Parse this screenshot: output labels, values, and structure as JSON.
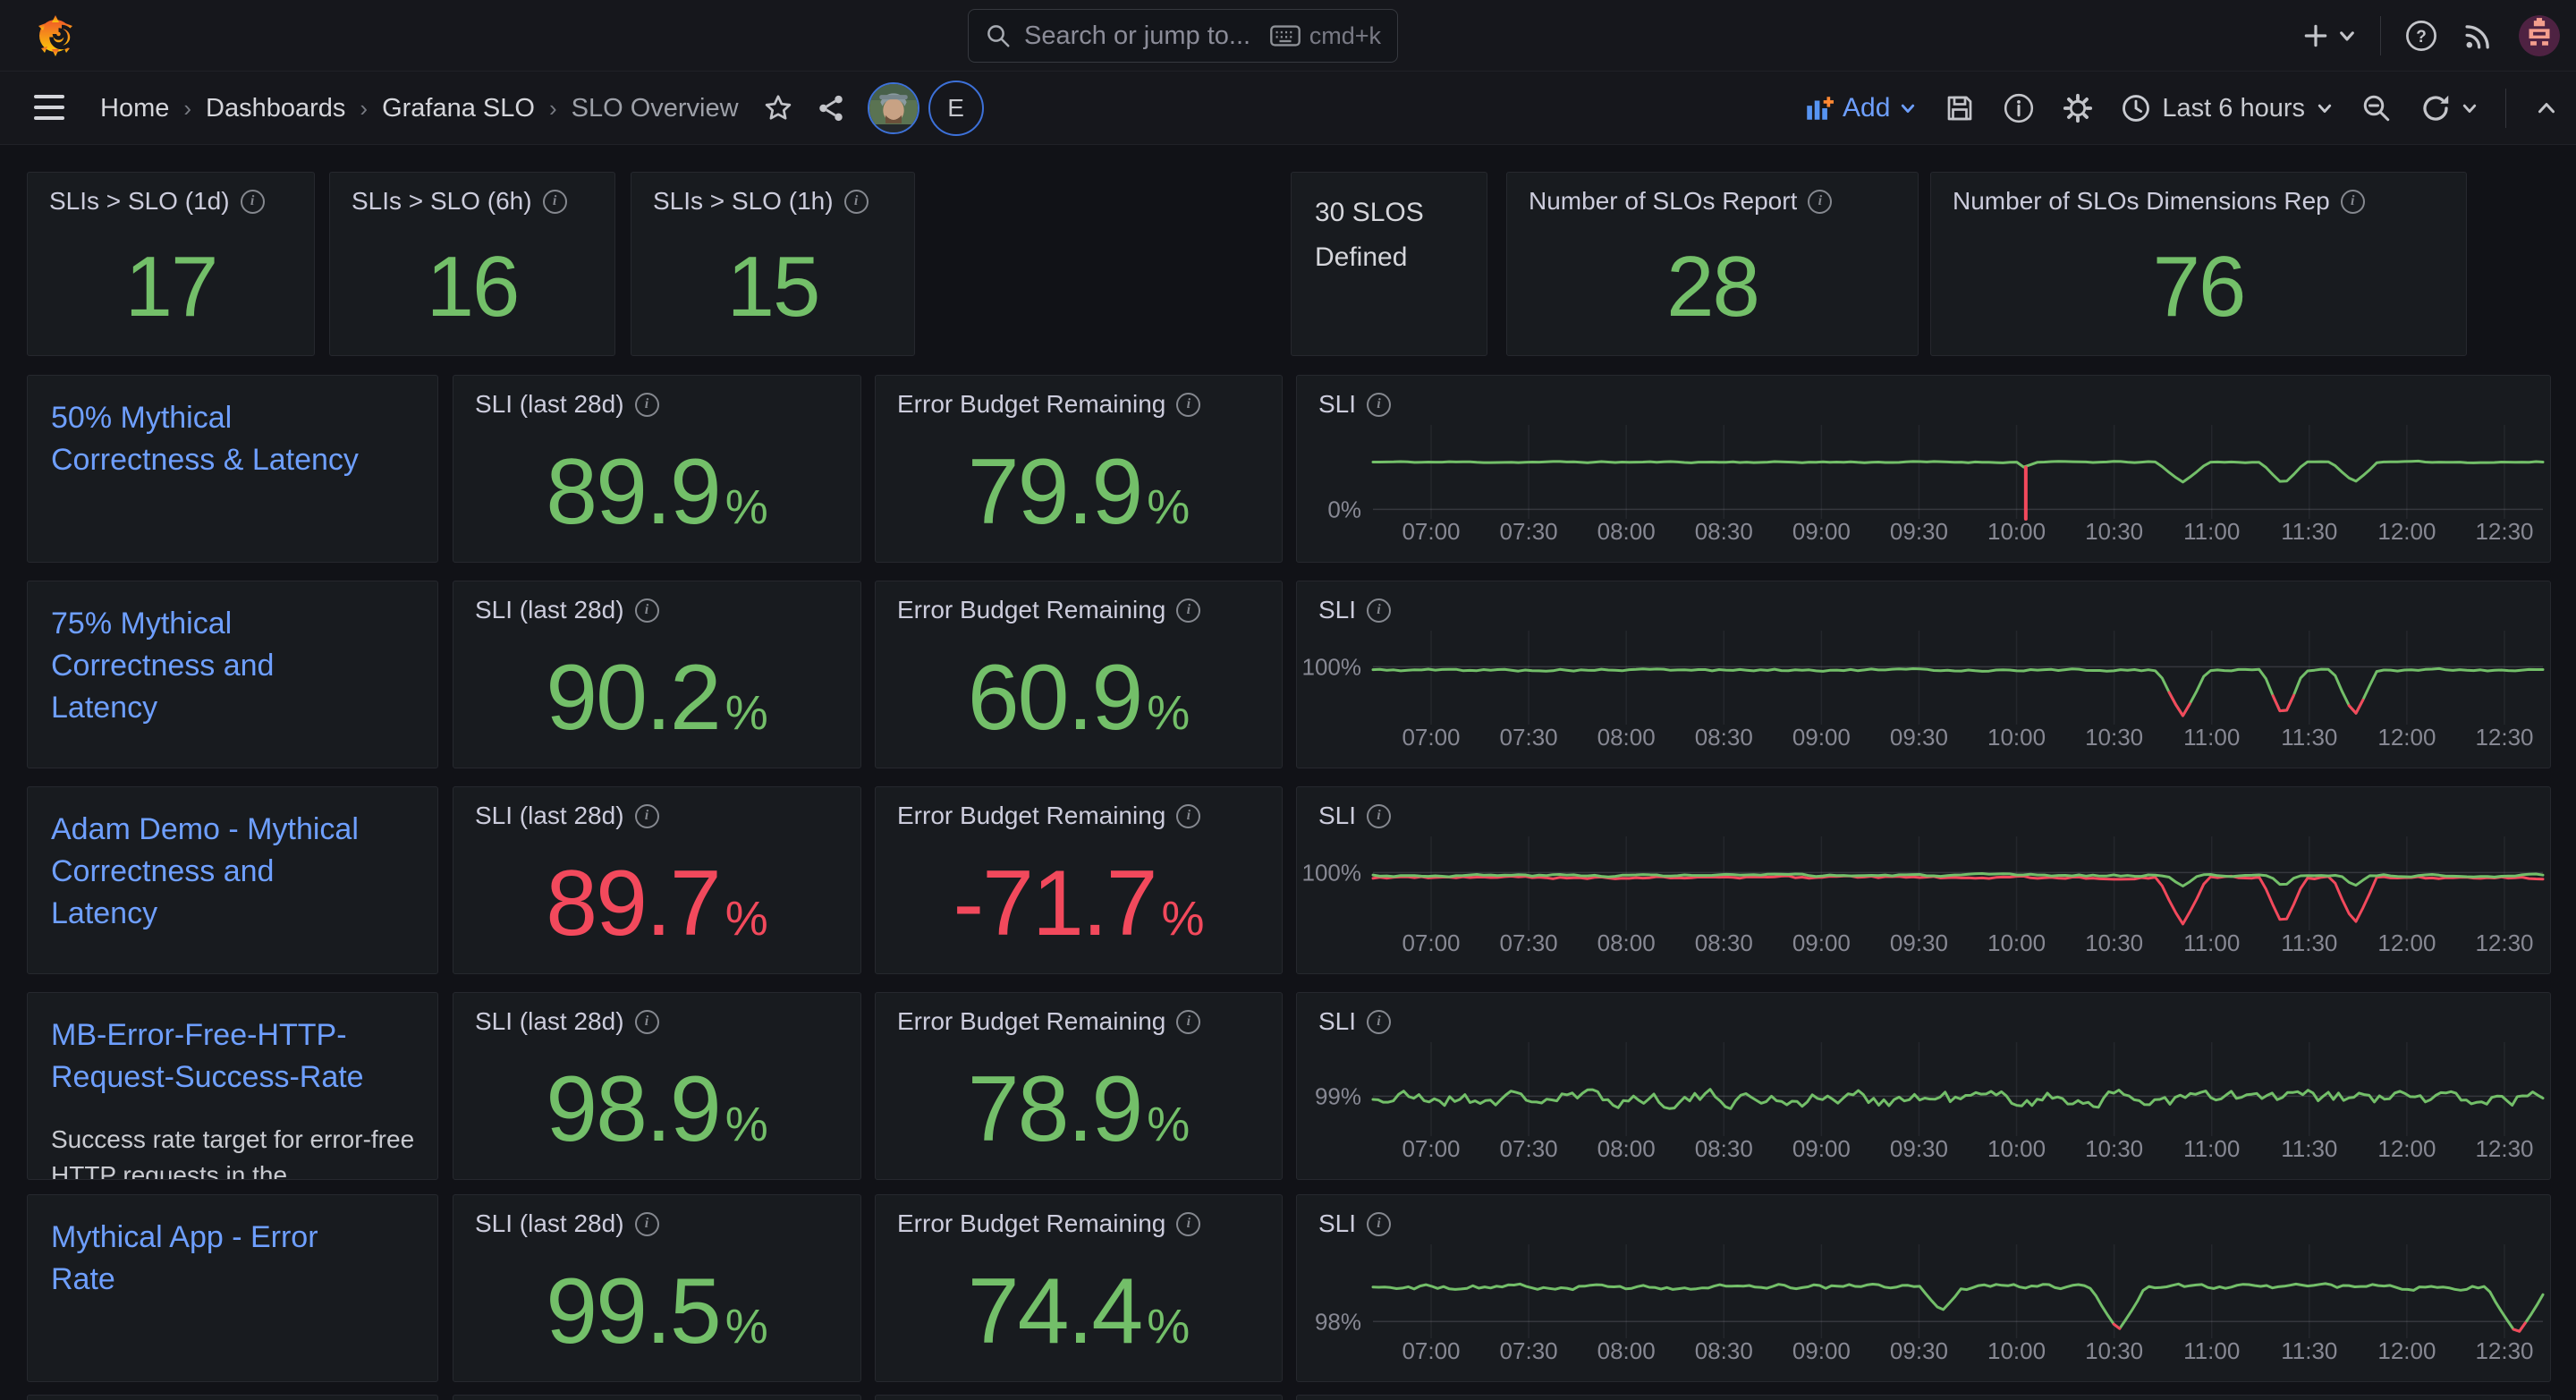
{
  "colors": {
    "green": "#73BF69",
    "red": "#F2495C",
    "blue": "#6E9FFF"
  },
  "icons": {
    "info_glyph": "i"
  },
  "topbar": {
    "search_placeholder": "Search or jump to...",
    "search_shortcut": "cmd+k"
  },
  "breadcrumb": {
    "home": "Home",
    "dashboards": "Dashboards",
    "folder": "Grafana SLO",
    "current": "SLO Overview",
    "separator": "›"
  },
  "toolbar": {
    "add_label": "Add",
    "time_range": "Last 6 hours"
  },
  "user_badge": "E",
  "labels": {
    "sli_title": "SLI (last 28d)",
    "budget_title": "Error Budget Remaining",
    "chart_title": "SLI",
    "percent": "%"
  },
  "summary": {
    "slo_1d": {
      "title": "SLIs > SLO (1d)",
      "value": "17"
    },
    "slo_6h": {
      "title": "SLIs > SLO (6h)",
      "value": "16"
    },
    "slo_1h": {
      "title": "SLIs > SLO (1h)",
      "value": "15"
    },
    "defined": {
      "line1": "30 SLOS",
      "line2": "Defined"
    },
    "report": {
      "title": "Number of SLOs Report",
      "value": "28"
    },
    "dimensions": {
      "title": "Number of SLOs Dimensions Rep",
      "value": "76"
    }
  },
  "slo_rows": [
    {
      "name": "50% Mythical Correctness & Latency",
      "sli": "89.9",
      "sli_color": "#73BF69",
      "budget": "79.9",
      "budget_color": "#73BF69"
    },
    {
      "name": "75% Mythical Correctness and Latency",
      "sli": "90.2",
      "sli_color": "#73BF69",
      "budget": "60.9",
      "budget_color": "#73BF69"
    },
    {
      "name": "Adam Demo - Mythical Correctness and Latency",
      "sli": "89.7",
      "sli_color": "#F2495C",
      "budget": "-71.7",
      "budget_color": "#F2495C"
    },
    {
      "name": "MB-Error-Free-HTTP-Request-Success-Rate",
      "description": "Success rate target for error-free HTTP requests in the",
      "sli": "98.9",
      "sli_color": "#73BF69",
      "budget": "78.9",
      "budget_color": "#73BF69"
    },
    {
      "name": "Mythical App - Error Rate",
      "sli": "99.5",
      "sli_color": "#73BF69",
      "budget": "74.4",
      "budget_color": "#73BF69"
    }
  ],
  "chart_data": [
    {
      "type": "line",
      "title": "SLI",
      "x_ticks": [
        "07:00",
        "07:30",
        "08:00",
        "08:30",
        "09:00",
        "09:30",
        "10:00",
        "10:30",
        "11:00",
        "11:30",
        "12:00",
        "12:30"
      ],
      "y_tick_label": "0%",
      "y_tick_value": 0,
      "ylim": [
        -14,
        125
      ],
      "series": [
        {
          "color": "#73BF69",
          "baseline": 70,
          "noise": 1.2,
          "seed": 11,
          "points": 170,
          "dips": [
            {
              "c": 0.558,
              "w": 0.012,
              "bottom": 60
            },
            {
              "c": 0.692,
              "w": 0.042,
              "bottom": 40
            },
            {
              "c": 0.778,
              "w": 0.036,
              "bottom": 37
            },
            {
              "c": 0.839,
              "w": 0.038,
              "bottom": 40
            }
          ]
        }
      ],
      "spikes": [
        {
          "x": 0.558,
          "from": 62,
          "to": -14,
          "color": "#F2495C"
        }
      ]
    },
    {
      "type": "line",
      "title": "SLI",
      "x_ticks": [
        "07:00",
        "07:30",
        "08:00",
        "08:30",
        "09:00",
        "09:30",
        "10:00",
        "10:30",
        "11:00",
        "11:30",
        "12:00",
        "12:30"
      ],
      "y_tick_label": "100%",
      "y_tick_value": 100,
      "ylim": [
        84,
        110
      ],
      "series": [
        {
          "color": "#73BF69",
          "baseline": 99.1,
          "noise": 0.4,
          "seed": 5,
          "points": 170,
          "threshold": 93,
          "dips": [
            {
              "c": 0.692,
              "w": 0.04,
              "bottom": 86.3
            },
            {
              "c": 0.778,
              "w": 0.034,
              "bottom": 85.9
            },
            {
              "c": 0.839,
              "w": 0.036,
              "bottom": 86.4
            }
          ]
        }
      ]
    },
    {
      "type": "line",
      "title": "SLI",
      "x_ticks": [
        "07:00",
        "07:30",
        "08:00",
        "08:30",
        "09:00",
        "09:30",
        "10:00",
        "10:30",
        "11:00",
        "11:30",
        "12:00",
        "12:30"
      ],
      "y_tick_label": "100%",
      "y_tick_value": 100,
      "ylim": [
        84,
        110
      ],
      "series": [
        {
          "color": "#F2495C",
          "baseline": 98.6,
          "noise": 0.45,
          "seed": 9,
          "points": 170,
          "dips": [
            {
              "c": 0.692,
              "w": 0.04,
              "bottom": 85.6
            },
            {
              "c": 0.778,
              "w": 0.036,
              "bottom": 85.2
            },
            {
              "c": 0.839,
              "w": 0.036,
              "bottom": 85.7
            }
          ]
        },
        {
          "color": "#73BF69",
          "baseline": 99.2,
          "noise": 0.4,
          "seed": 3,
          "points": 170,
          "dips": [
            {
              "c": 0.692,
              "w": 0.026,
              "bottom": 96.2
            },
            {
              "c": 0.778,
              "w": 0.022,
              "bottom": 96.0
            },
            {
              "c": 0.839,
              "w": 0.023,
              "bottom": 96.2
            }
          ]
        }
      ]
    },
    {
      "type": "line",
      "title": "SLI",
      "x_ticks": [
        "07:00",
        "07:30",
        "08:00",
        "08:30",
        "09:00",
        "09:30",
        "10:00",
        "10:30",
        "11:00",
        "11:30",
        "12:00",
        "12:30"
      ],
      "y_tick_label": "99%",
      "y_tick_value": 99,
      "ylim": [
        98.15,
        100.15
      ],
      "series": [
        {
          "color": "#73BF69",
          "baseline": 98.95,
          "noise": 0.21,
          "seed": 21,
          "points": 230,
          "dips": []
        }
      ]
    },
    {
      "type": "line",
      "title": "SLI",
      "x_ticks": [
        "07:00",
        "07:30",
        "08:00",
        "08:30",
        "09:00",
        "09:30",
        "10:00",
        "10:30",
        "11:00",
        "11:30",
        "12:00",
        "12:30"
      ],
      "y_tick_label": "98%",
      "y_tick_value": 98,
      "ylim": [
        97.87,
        98.6
      ],
      "series": [
        {
          "color": "#73BF69",
          "baseline": 98.27,
          "noise": 0.025,
          "seed": 14,
          "points": 200,
          "threshold": 98,
          "dips": [
            {
              "c": 0.486,
              "w": 0.035,
              "bottom": 98.08
            },
            {
              "c": 0.637,
              "w": 0.045,
              "bottom": 97.93
            },
            {
              "c": 0.978,
              "w": 0.05,
              "bottom": 97.9
            }
          ]
        }
      ]
    }
  ]
}
